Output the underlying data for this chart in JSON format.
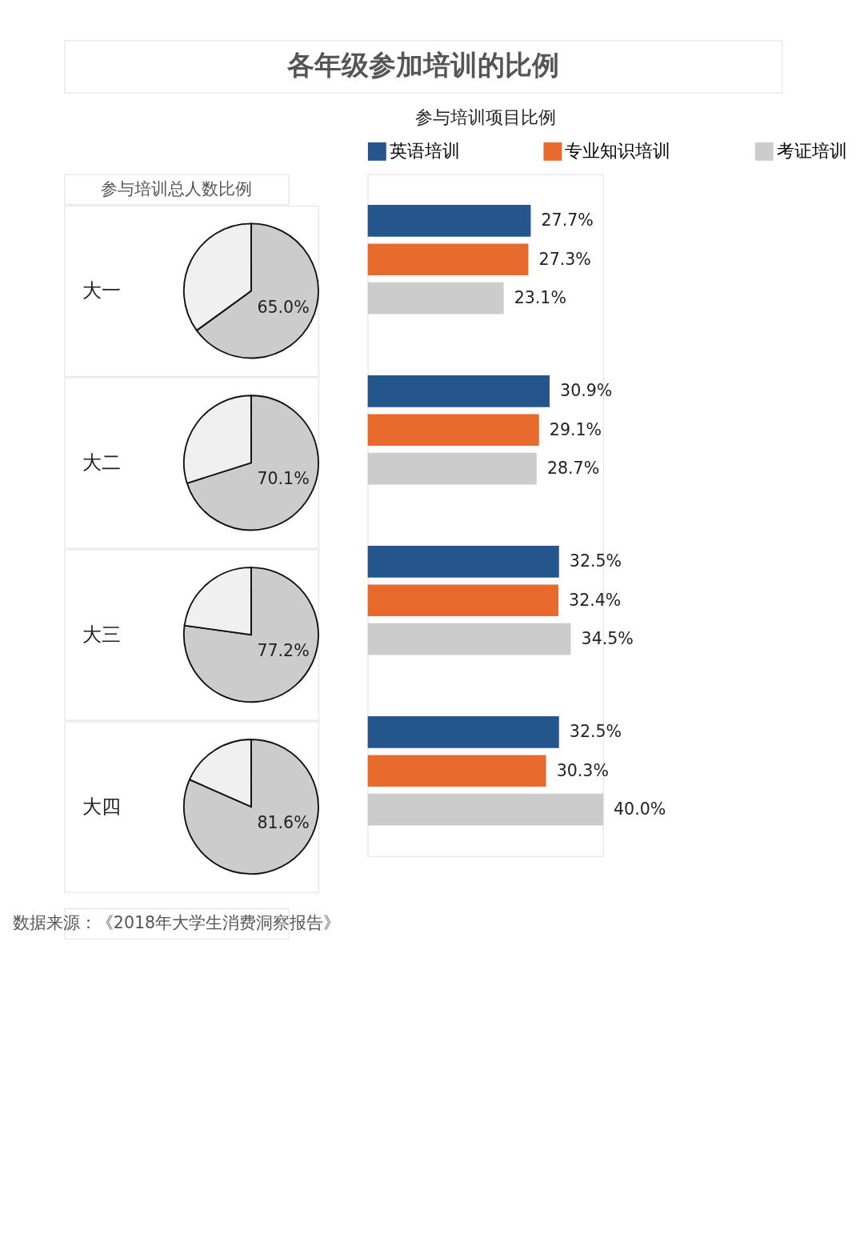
{
  "chart_data": [
    {
      "type": "other",
      "title": "各年级参加培训的比例",
      "annotations": [
        "参与培训总人数比例",
        "数据来源：《2018年大学生消费洞察报告》"
      ]
    },
    {
      "type": "pie",
      "title": "大一",
      "categories": [
        null,
        null
      ],
      "values": [
        65.0,
        35.0
      ],
      "colors": [
        "#cccccc",
        "#f0f0f0"
      ],
      "value_labels": [
        "65.0%",
        null
      ]
    },
    {
      "type": "pie",
      "title": "大二",
      "categories": [
        null,
        null
      ],
      "values": [
        70.1,
        29.9
      ],
      "colors": [
        "#cccccc",
        "#f0f0f0"
      ],
      "value_labels": [
        "70.1%",
        null
      ]
    },
    {
      "type": "pie",
      "title": "大三",
      "categories": [
        null,
        null
      ],
      "values": [
        77.2,
        22.8
      ],
      "colors": [
        "#cccccc",
        "#f0f0f0"
      ],
      "value_labels": [
        "77.2%",
        null
      ]
    },
    {
      "type": "pie",
      "title": "大四",
      "categories": [
        null,
        null
      ],
      "values": [
        81.6,
        18.4
      ],
      "colors": [
        "#cccccc",
        "#f0f0f0"
      ],
      "value_labels": [
        "81.6%",
        null
      ]
    },
    {
      "type": "bar",
      "orientation": "horizontal",
      "title": "参与培训项目比例",
      "categories": [
        null,
        null,
        null,
        null
      ],
      "legend": "top",
      "series": [
        {
          "name": "英语培训",
          "color": "#24568c",
          "values": [
            27.7,
            30.9,
            32.5,
            32.5
          ],
          "value_labels": [
            "27.7%",
            "30.9%",
            "32.5%",
            "32.5%"
          ]
        },
        {
          "name": "专业知识培训",
          "color": "#e8692c",
          "values": [
            27.3,
            29.1,
            32.4,
            30.3
          ],
          "value_labels": [
            "27.3%",
            "29.1%",
            "32.4%",
            "30.3%"
          ]
        },
        {
          "name": "考证培训",
          "color": "#cccccc",
          "values": [
            23.1,
            28.7,
            34.5,
            40.0
          ],
          "value_labels": [
            "23.1%",
            "28.7%",
            "34.5%",
            "40.0%"
          ]
        }
      ]
    }
  ]
}
